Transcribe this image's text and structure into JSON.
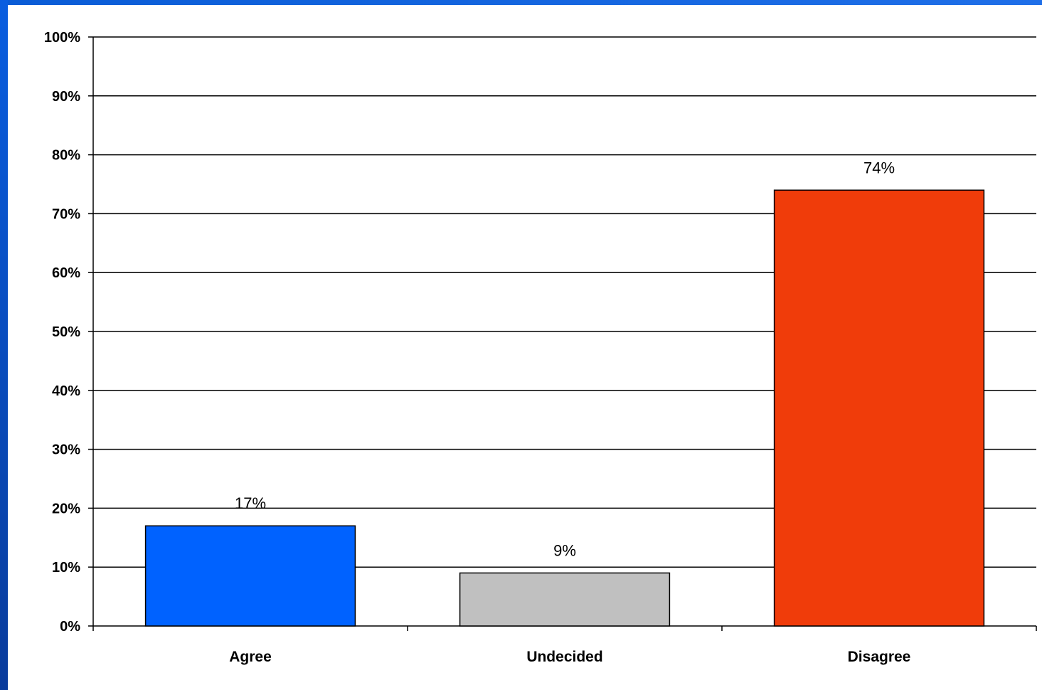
{
  "chart_data": {
    "type": "bar",
    "categories": [
      "Agree",
      "Undecided",
      "Disagree"
    ],
    "values": [
      17,
      9,
      74
    ],
    "data_labels": [
      "17%",
      "9%",
      "74%"
    ],
    "colors": [
      "#0062ff",
      "#c0c0c0",
      "#f03c0a"
    ],
    "ylim": [
      0,
      100
    ],
    "yticks": [
      0,
      10,
      20,
      30,
      40,
      50,
      60,
      70,
      80,
      90,
      100
    ],
    "ytick_labels": [
      "0%",
      "10%",
      "20%",
      "30%",
      "40%",
      "50%",
      "60%",
      "70%",
      "80%",
      "90%",
      "100%"
    ],
    "grid": true,
    "legend": "none",
    "title": "",
    "xlabel": "",
    "ylabel": ""
  },
  "frame_color": "#0a5ee0"
}
